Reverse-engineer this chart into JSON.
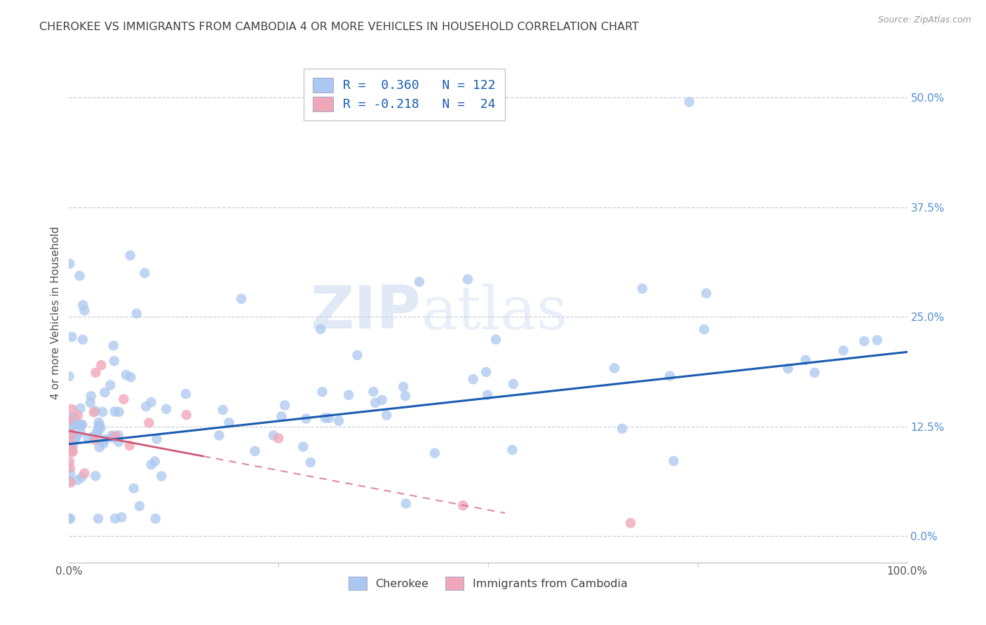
{
  "title": "CHEROKEE VS IMMIGRANTS FROM CAMBODIA 4 OR MORE VEHICLES IN HOUSEHOLD CORRELATION CHART",
  "source": "Source: ZipAtlas.com",
  "ylabel": "4 or more Vehicles in Household",
  "ytick_values": [
    0.0,
    12.5,
    25.0,
    37.5,
    50.0
  ],
  "xlim": [
    0.0,
    100.0
  ],
  "ylim": [
    -3.0,
    54.0
  ],
  "watermark_zip": "ZIP",
  "watermark_atlas": "atlas",
  "blue_color": "#aac8f0",
  "pink_color": "#f0a8b8",
  "blue_line_color": "#1a5cb0",
  "pink_line_color": "#d05878",
  "title_color": "#404040",
  "right_label_color": "#5090d0",
  "background_color": "#ffffff",
  "grid_color": "#c8c8d8",
  "legend_line1": "R =  0.360   N = 122",
  "legend_line2": "R = -0.218   N =  24",
  "blue_scatter_seed": 7,
  "pink_scatter_seed": 13
}
